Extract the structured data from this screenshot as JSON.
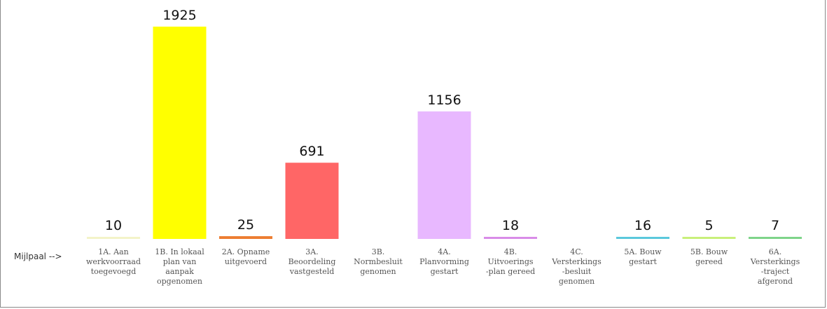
{
  "chart_data": {
    "type": "bar",
    "axis_prefix": "Mijlpaal -->",
    "categories": [
      [
        "1A. Aan",
        "werkvoorraad",
        "toegevoegd"
      ],
      [
        "1B. In lokaal",
        "plan van",
        "aanpak",
        "opgenomen"
      ],
      [
        "2A. Opname",
        "uitgevoerd"
      ],
      [
        "3A.",
        "Beoordeling",
        "vastgesteld"
      ],
      [
        "3B.",
        "Normbesluit",
        "genomen"
      ],
      [
        "4A.",
        "Planvorming",
        "gestart"
      ],
      [
        "4B.",
        "Uitvoerings",
        "-plan gereed"
      ],
      [
        "4C.",
        "Versterkings",
        "-besluit",
        "genomen"
      ],
      [
        "5A. Bouw",
        "gestart"
      ],
      [
        "5B. Bouw",
        "gereed"
      ],
      [
        "6A.",
        "Versterkings",
        "-traject",
        "afgerond"
      ]
    ],
    "values": [
      10,
      1925,
      25,
      691,
      null,
      1156,
      18,
      null,
      16,
      5,
      7
    ],
    "value_labels": [
      "10",
      "1925",
      "25",
      "691",
      "",
      "1156",
      "18",
      "",
      "16",
      "5",
      "7"
    ],
    "colors": [
      "#f3f3c8",
      "#ffff00",
      "#ed7d31",
      "#ff6666",
      "#ffffff",
      "#e8b8ff",
      "#d98ce8",
      "#ffffff",
      "#5bc8dc",
      "#c8f07a",
      "#7ed48a"
    ],
    "ylim": [
      0,
      1925
    ]
  }
}
